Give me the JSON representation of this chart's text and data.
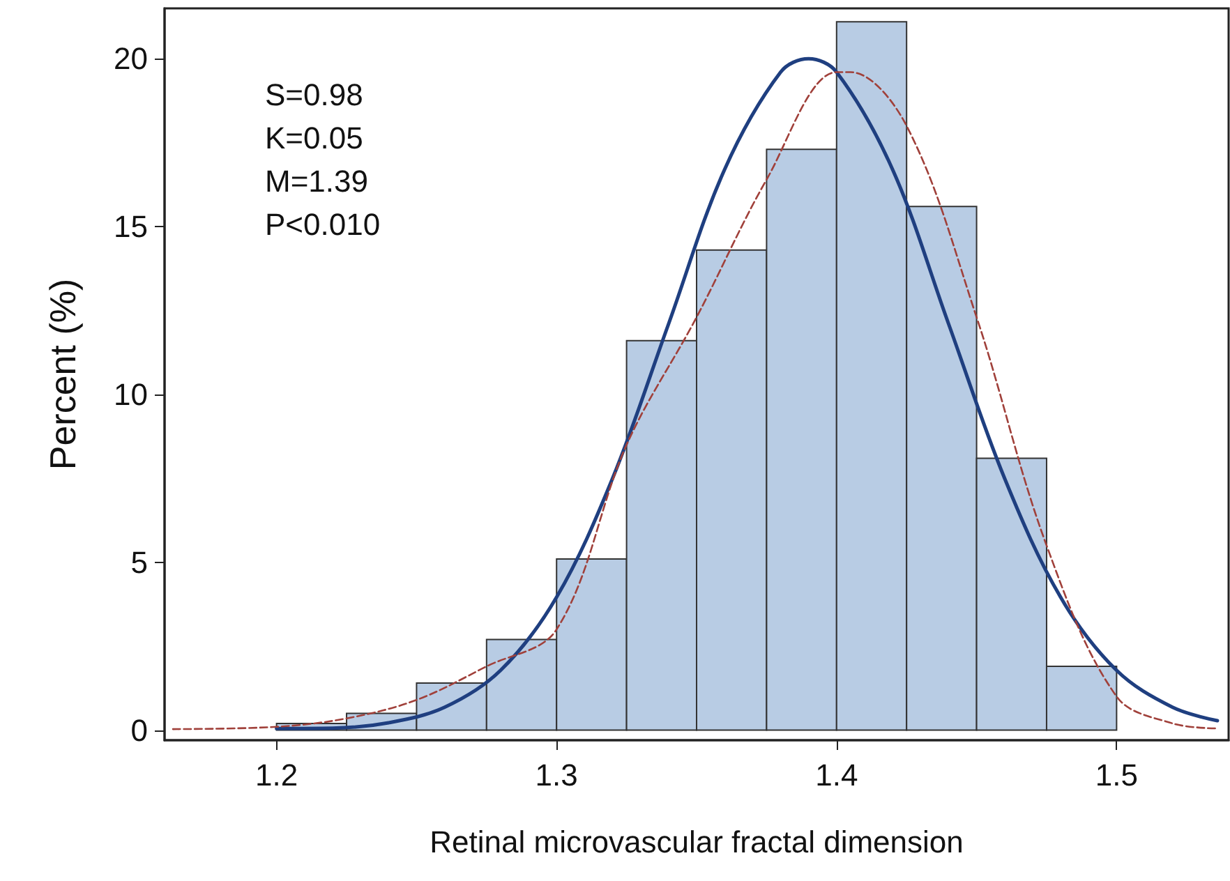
{
  "chart_data": {
    "type": "histogram",
    "xlabel": "Retinal microvascular fractal dimension",
    "ylabel": "Percent (%)",
    "bins": [
      1.2,
      1.225,
      1.25,
      1.275,
      1.3,
      1.325,
      1.35,
      1.375,
      1.4,
      1.425,
      1.45,
      1.475,
      1.5
    ],
    "values": [
      0.2,
      0.5,
      1.4,
      2.7,
      5.1,
      11.6,
      14.3,
      17.3,
      21.1,
      15.6,
      8.1,
      1.9
    ],
    "color": "#b8cce4",
    "series": [
      {
        "type": "line",
        "color": "#1f3f80",
        "line_style": "solid",
        "x": [
          1.2,
          1.22,
          1.24,
          1.26,
          1.28,
          1.3,
          1.32,
          1.34,
          1.36,
          1.38,
          1.39,
          1.4,
          1.42,
          1.44,
          1.46,
          1.48,
          1.5,
          1.52,
          1.536
        ],
        "values": [
          0.05,
          0.06,
          0.22,
          0.68,
          1.78,
          3.96,
          7.5,
          12.1,
          16.7,
          19.6,
          20.0,
          19.6,
          16.7,
          12.1,
          7.5,
          3.96,
          1.78,
          0.68,
          0.28
        ]
      },
      {
        "type": "line",
        "color": "#a0403a",
        "line_style": "dashed",
        "x": [
          1.163,
          1.2,
          1.225,
          1.25,
          1.275,
          1.3,
          1.325,
          1.35,
          1.375,
          1.4,
          1.405,
          1.425,
          1.45,
          1.475,
          1.5,
          1.52,
          1.536
        ],
        "values": [
          0.03,
          0.1,
          0.35,
          0.9,
          1.9,
          3.0,
          8.5,
          12.3,
          16.4,
          19.6,
          19.6,
          18.0,
          12.3,
          5.5,
          1.0,
          0.2,
          0.05
        ]
      }
    ],
    "xlim": [
      1.16,
      1.54
    ],
    "xticks": [
      1.2,
      1.3,
      1.4,
      1.5
    ],
    "ylim": [
      -0.3,
      21.5
    ],
    "yticks": [
      0,
      5,
      10,
      15,
      20
    ],
    "grid": false,
    "annotations": [
      "S=0.98",
      "K=0.05",
      "M=1.39",
      "P<0.010"
    ]
  }
}
